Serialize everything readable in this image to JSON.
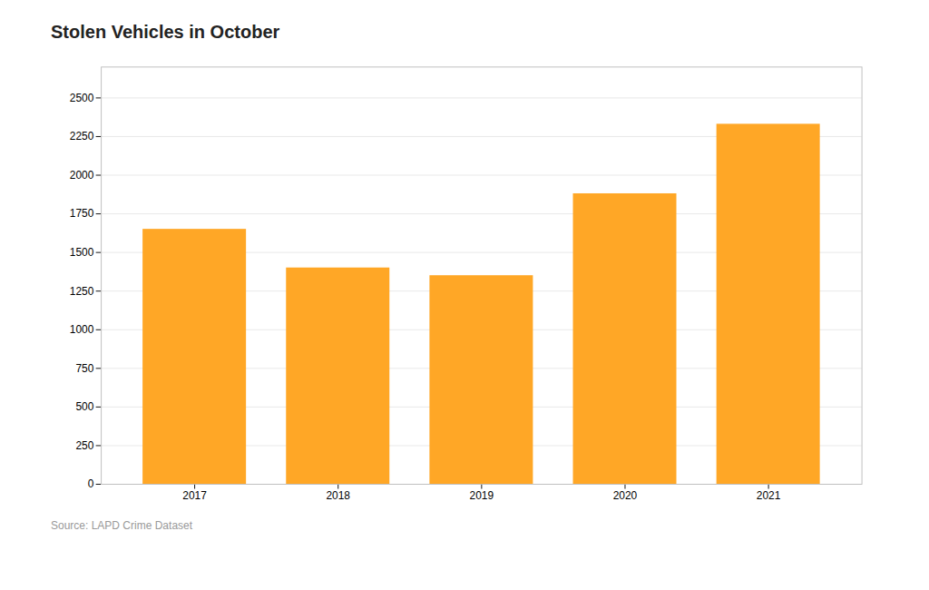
{
  "chart_data": {
    "type": "bar",
    "title": "Stolen Vehicles in October",
    "caption": "Source: LAPD Crime Dataset",
    "categories": [
      "2017",
      "2018",
      "2019",
      "2020",
      "2021"
    ],
    "values": [
      1650,
      1400,
      1350,
      1880,
      2330
    ],
    "color": "#FFA726",
    "ylim": [
      0,
      2700
    ],
    "yticks": [
      0,
      250,
      500,
      750,
      1000,
      1250,
      1500,
      1750,
      2000,
      2250,
      2500
    ],
    "grid": true
  }
}
